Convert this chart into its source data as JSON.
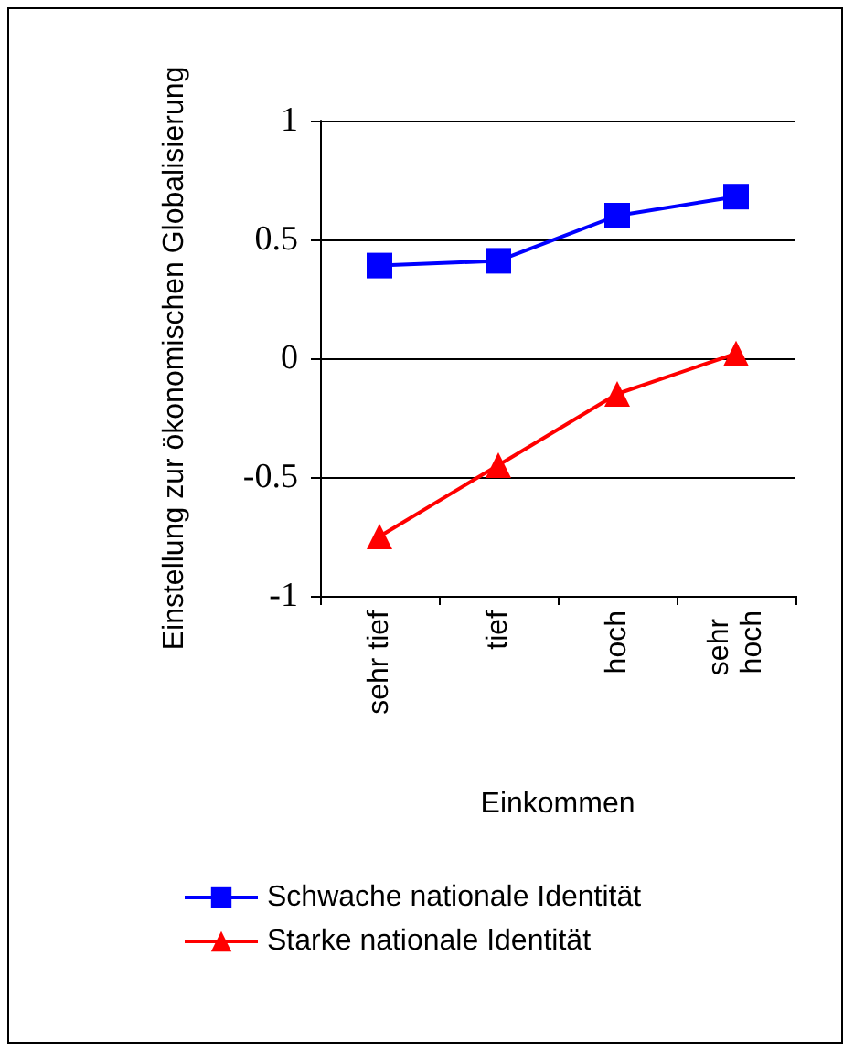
{
  "chart_data": {
    "type": "line",
    "xlabel": "Einkommen",
    "ylabel": "Einstellung zur ökonomischen Globalisierung",
    "categories": [
      "sehr tief",
      "tief",
      "hoch",
      "sehr hoch"
    ],
    "series": [
      {
        "name": "Schwache nationale Identität",
        "color": "#0000ff",
        "marker": "square",
        "values": [
          0.39,
          0.41,
          0.6,
          0.68
        ]
      },
      {
        "name": "Starke nationale Identität",
        "color": "#ff0000",
        "marker": "triangle",
        "values": [
          -0.75,
          -0.45,
          -0.15,
          0.02
        ]
      }
    ],
    "ylim": [
      -1,
      1
    ],
    "yticks": [
      -1,
      -0.5,
      0,
      0.5,
      1
    ],
    "grid": "y",
    "legend": "bottom",
    "line_style": "solid"
  }
}
